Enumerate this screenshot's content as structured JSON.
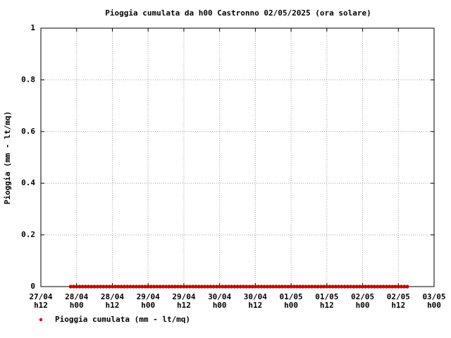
{
  "chart_data": {
    "type": "scatter",
    "title": "Pioggia cumulata da h00  Castronno 02/05/2025 (ora solare)",
    "ylabel": "Pioggia (mm - lt/mq)",
    "series": [
      {
        "name": "Pioggia cumulata (mm - lt/mq)",
        "color": "#cc0000",
        "x": [
          22,
          23,
          24,
          25,
          26,
          27,
          28,
          29,
          30,
          31,
          32,
          33,
          34,
          35,
          36,
          37,
          38,
          39,
          40,
          41,
          42,
          43,
          44,
          45,
          46,
          47,
          48,
          49,
          50,
          51,
          52,
          53,
          54,
          55,
          56,
          57,
          58,
          59,
          60,
          61,
          62,
          63,
          64,
          65,
          66,
          67,
          68,
          69,
          70,
          71,
          72,
          73,
          74,
          75,
          76,
          77,
          78,
          79,
          80,
          81,
          82,
          83,
          84,
          85,
          86,
          87,
          88,
          89,
          90,
          91,
          92,
          93,
          94,
          95,
          96,
          97,
          98,
          99,
          100,
          101,
          102,
          103,
          104,
          105,
          106,
          107,
          108,
          109,
          110,
          111,
          112,
          113,
          114,
          115,
          116,
          117,
          118,
          119,
          120,
          121,
          122,
          123,
          124,
          125,
          126,
          127,
          128,
          129,
          130,
          131,
          132,
          133,
          134,
          135
        ],
        "values": [
          0,
          0,
          0,
          0,
          0,
          0,
          0,
          0,
          0,
          0,
          0,
          0,
          0,
          0,
          0,
          0,
          0,
          0,
          0,
          0,
          0,
          0,
          0,
          0,
          0,
          0,
          0,
          0,
          0,
          0,
          0,
          0,
          0,
          0,
          0,
          0,
          0,
          0,
          0,
          0,
          0,
          0,
          0,
          0,
          0,
          0,
          0,
          0,
          0,
          0,
          0,
          0,
          0,
          0,
          0,
          0,
          0,
          0,
          0,
          0,
          0,
          0,
          0,
          0,
          0,
          0,
          0,
          0,
          0,
          0,
          0,
          0,
          0,
          0,
          0,
          0,
          0,
          0,
          0,
          0,
          0,
          0,
          0,
          0,
          0,
          0,
          0,
          0,
          0,
          0,
          0,
          0,
          0,
          0,
          0,
          0,
          0,
          0,
          0,
          0,
          0,
          0,
          0,
          0,
          0,
          0,
          0,
          0,
          0,
          0,
          0,
          0,
          0,
          0
        ]
      }
    ],
    "xlim": [
      12,
      144
    ],
    "xticks": [
      {
        "value": 12,
        "label": [
          "27/04",
          "h12"
        ]
      },
      {
        "value": 24,
        "label": [
          "28/04",
          "h00"
        ]
      },
      {
        "value": 36,
        "label": [
          "28/04",
          "h12"
        ]
      },
      {
        "value": 48,
        "label": [
          "29/04",
          "h00"
        ]
      },
      {
        "value": 60,
        "label": [
          "29/04",
          "h12"
        ]
      },
      {
        "value": 72,
        "label": [
          "30/04",
          "h00"
        ]
      },
      {
        "value": 84,
        "label": [
          "30/04",
          "h12"
        ]
      },
      {
        "value": 96,
        "label": [
          "01/05",
          "h00"
        ]
      },
      {
        "value": 108,
        "label": [
          "01/05",
          "h12"
        ]
      },
      {
        "value": 120,
        "label": [
          "02/05",
          "h00"
        ]
      },
      {
        "value": 132,
        "label": [
          "02/05",
          "h12"
        ]
      },
      {
        "value": 144,
        "label": [
          "03/05",
          "h00"
        ]
      }
    ],
    "ylim": [
      0,
      1
    ],
    "yticks": [
      0,
      0.2,
      0.4,
      0.6,
      0.8,
      1
    ],
    "grid": true,
    "legend": "bottom-left"
  }
}
